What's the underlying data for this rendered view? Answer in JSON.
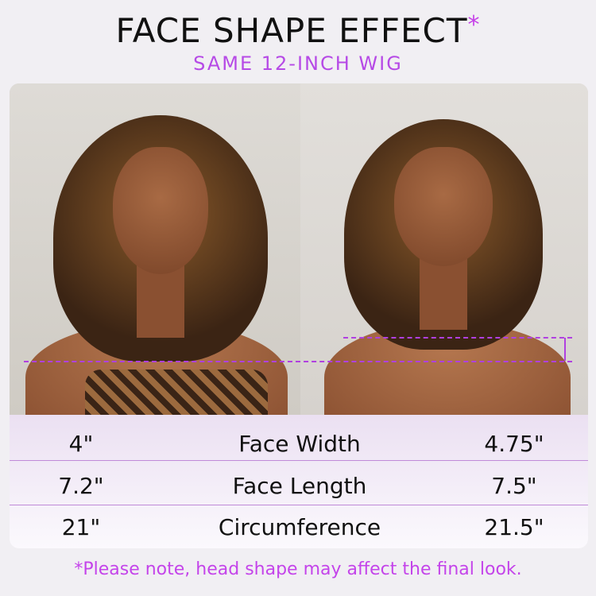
{
  "header": {
    "title": "FACE SHAPE EFFECT",
    "title_mark": "*",
    "subtitle": "SAME 12-INCH WIG"
  },
  "colors": {
    "accent": "#c444ea",
    "guide_line": "#b040e0",
    "separator": "#c08ad8"
  },
  "comparison": {
    "rows": [
      {
        "left": "4\"",
        "label": "Face Width",
        "right": "4.75\""
      },
      {
        "left": "7.2\"",
        "label": "Face Length",
        "right": "7.5\""
      },
      {
        "left": "21\"",
        "label": "Circumference",
        "right": "21.5\""
      }
    ]
  },
  "note": "*Please note, head shape may affect the final look."
}
